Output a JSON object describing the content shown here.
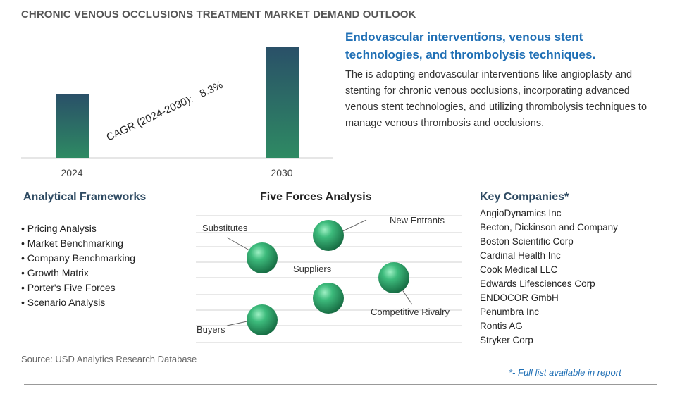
{
  "page_title": "CHRONIC VENOUS OCCLUSIONS TREATMENT MARKET DEMAND OUTLOOK",
  "chart_data": {
    "type": "bar",
    "categories": [
      "2024",
      "2030"
    ],
    "annotation": "CAGR (2024-2030):   8.3%",
    "colors": {
      "bar_top": "#2a5068",
      "bar_bottom": "#2e8a63"
    }
  },
  "headline": "Endovascular interventions, venous stent technologies, and thrombolysis techniques.",
  "description": "The is adopting endovascular interventions like angioplasty and stenting for chronic venous occlusions, incorporating advanced venous stent technologies, and utilizing thrombolysis techniques to manage venous thrombosis and occlusions.",
  "frameworks": {
    "title": "Analytical Frameworks",
    "items": [
      "Pricing Analysis",
      "Market Benchmarking",
      "Company Benchmarking",
      "Growth Matrix",
      "Porter's Five Forces",
      "Scenario Analysis"
    ]
  },
  "five_forces": {
    "title": "Five Forces Analysis",
    "labels": {
      "new_entrants": "New Entrants",
      "substitutes": "Substitutes",
      "suppliers": "Suppliers",
      "competitive_rivalry": "Competitive Rivalry",
      "buyers": "Buyers"
    },
    "sphere_color": "#2fa36a"
  },
  "companies": {
    "title": "Key Companies*",
    "items": [
      "AngioDynamics Inc",
      "Becton, Dickinson and Company",
      "Boston Scientific Corp",
      "Cardinal Health Inc",
      "Cook Medical LLC",
      "Edwards Lifesciences Corp",
      "ENDOCOR GmbH",
      "Penumbra Inc",
      "Rontis AG",
      "Stryker Corp"
    ]
  },
  "source": "Source: USD Analytics Research Database",
  "full_list_note": "*- Full list available in report"
}
